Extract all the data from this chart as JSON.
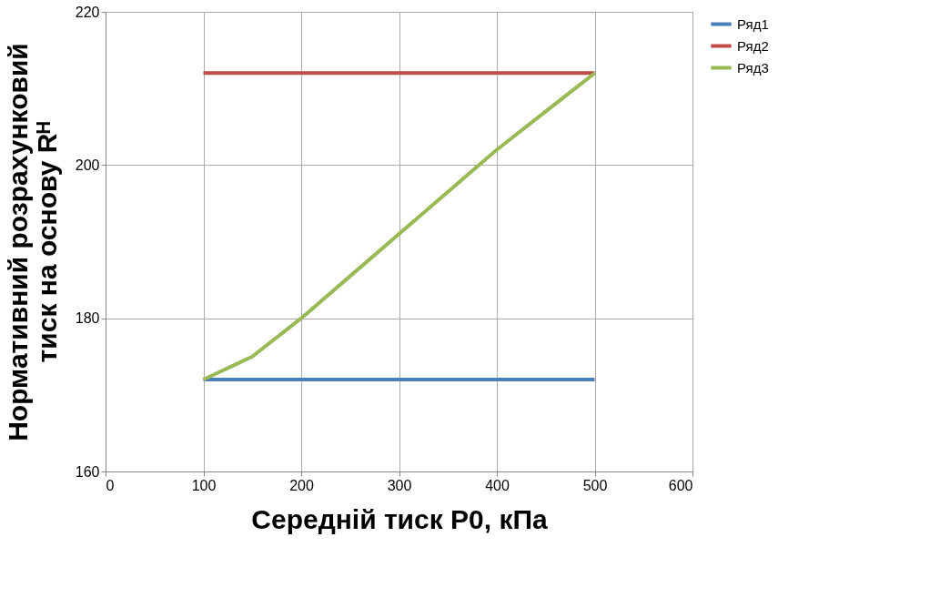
{
  "chart_data": {
    "type": "line",
    "xlabel": "Середній тиск P0,  кПа",
    "ylabel": "Нормативний розрахунковий\nтиск на основу Rᴴ",
    "xlim": [
      0,
      600
    ],
    "xticks": [
      0,
      100,
      200,
      300,
      400,
      500,
      600
    ],
    "ylim": [
      160,
      220
    ],
    "yticks": [
      160,
      180,
      200,
      220
    ],
    "grid": true,
    "legend": "right",
    "series": [
      {
        "name": "Ряд1",
        "color": "#4a7ebb",
        "x": [
          100,
          500
        ],
        "values": [
          172,
          172
        ]
      },
      {
        "name": "Ряд2",
        "color": "#be4b48",
        "x": [
          100,
          500
        ],
        "values": [
          212,
          212
        ]
      },
      {
        "name": "Ряд3",
        "color": "#98b954",
        "x": [
          100,
          150,
          200,
          250,
          300,
          350,
          400,
          450,
          500
        ],
        "values": [
          172,
          175,
          180,
          185.5,
          191,
          196.5,
          202,
          207,
          212
        ]
      }
    ]
  }
}
